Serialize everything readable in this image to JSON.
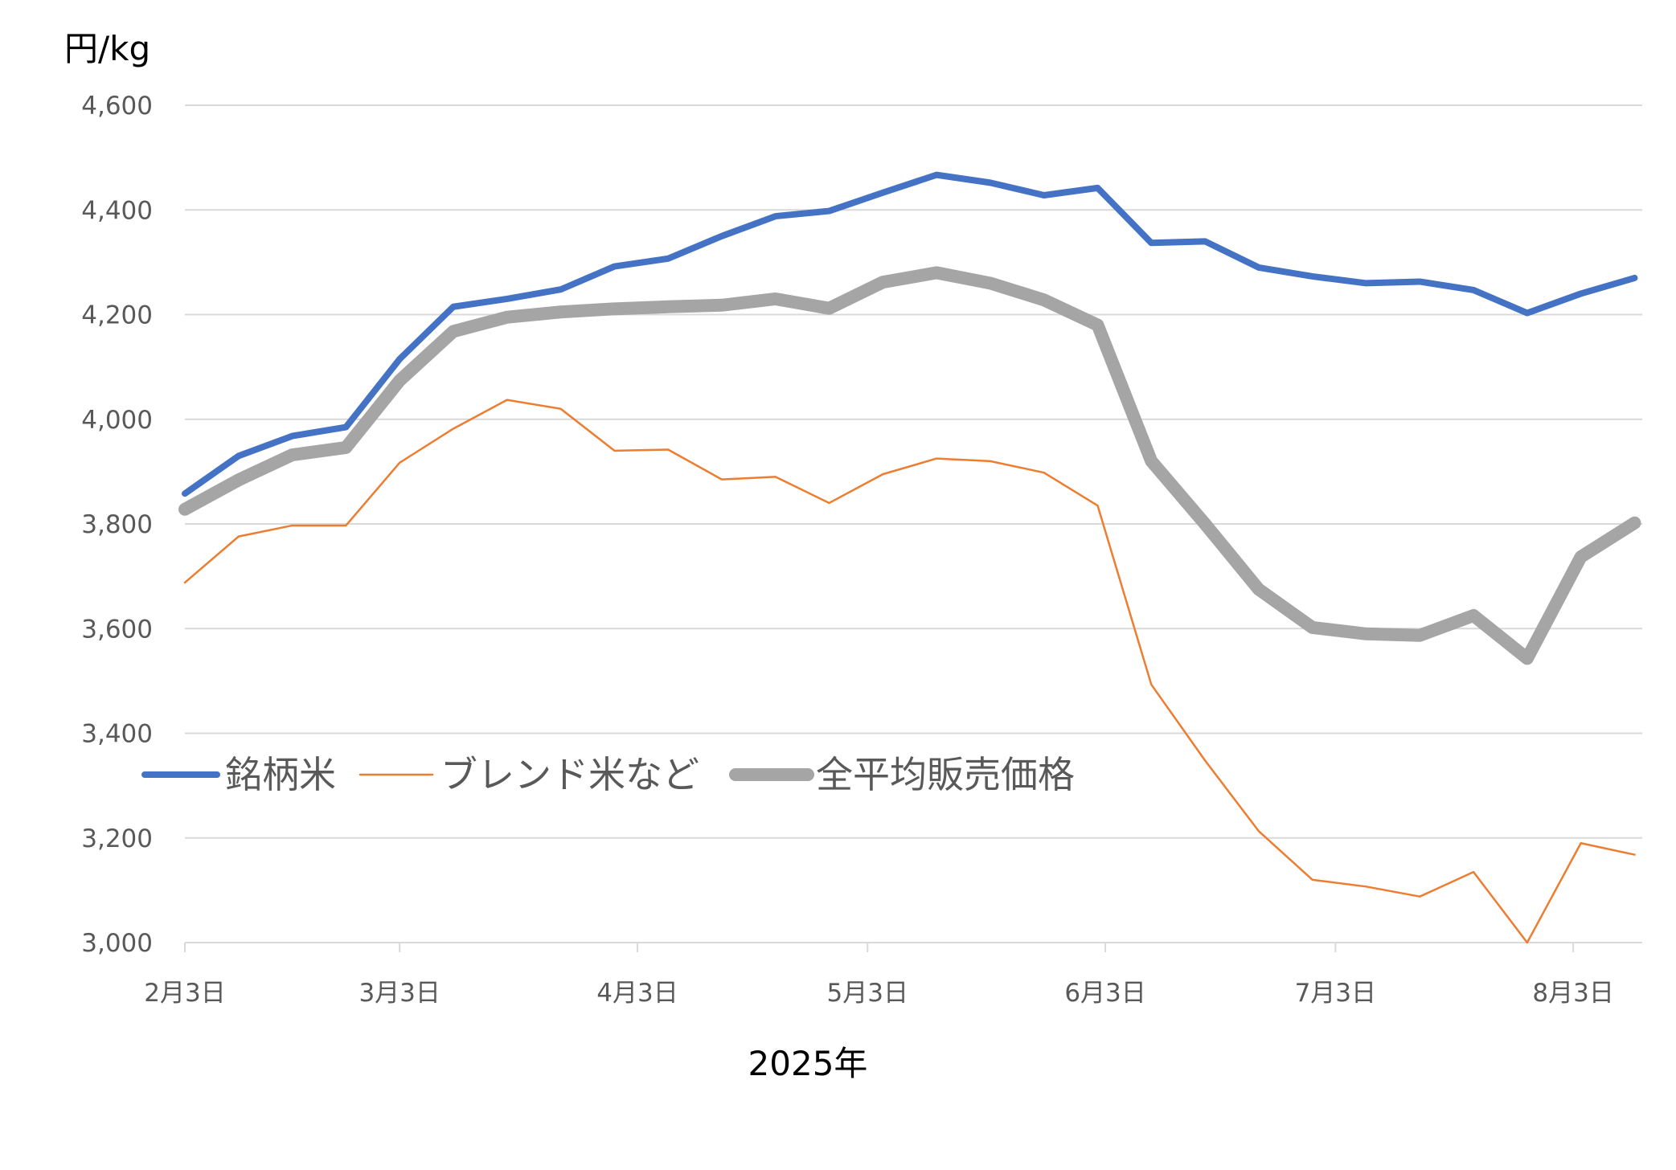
{
  "chart_data": {
    "type": "line",
    "ylabel": "円/kg",
    "xlabel": "2025年",
    "ylim": [
      3000,
      4600
    ],
    "y_ticks": [
      "3,000",
      "3,200",
      "3,400",
      "3,600",
      "3,800",
      "4,000",
      "4,200",
      "4,400",
      "4,600"
    ],
    "y_tick_values": [
      3000,
      3200,
      3400,
      3600,
      3800,
      4000,
      4200,
      4400,
      4600
    ],
    "x_ticks": [
      "2月3日",
      "3月3日",
      "4月3日",
      "5月3日",
      "6月3日",
      "7月3日",
      "8月3日"
    ],
    "x_tick_days": [
      0,
      28,
      59,
      89,
      120,
      150,
      181
    ],
    "x_range_days": [
      0,
      190
    ],
    "x_days": [
      0,
      7,
      14,
      21,
      28,
      35,
      42,
      49,
      56,
      63,
      70,
      77,
      84,
      91,
      98,
      105,
      112,
      119,
      126,
      133,
      140,
      147,
      154,
      161,
      168,
      175,
      182,
      189
    ],
    "grid": true,
    "legend_position": "left, inside plot near 3,400",
    "series": [
      {
        "name": "銘柄米",
        "color": "#4472C4",
        "values": [
          3858,
          3930,
          3968,
          3985,
          4115,
          4215,
          4230,
          4248,
          4292,
          4307,
          4350,
          4388,
          4398,
          4433,
          4467,
          4452,
          4428,
          4442,
          4337,
          4340,
          4290,
          4273,
          4260,
          4263,
          4247,
          4203,
          4240,
          4270
        ]
      },
      {
        "name": "ブレンド米など",
        "color": "#ED7D31",
        "values": [
          3688,
          3776,
          3797,
          3797,
          3917,
          3982,
          4037,
          4020,
          3940,
          3942,
          3885,
          3890,
          3840,
          3895,
          3925,
          3920,
          3898,
          3835,
          3493,
          3348,
          3213,
          3120,
          3107,
          3088,
          3135,
          3000,
          3190,
          3168
        ]
      },
      {
        "name": "全平均販売価格",
        "color": "#A5A5A5",
        "values": [
          3828,
          3884,
          3932,
          3946,
          4074,
          4168,
          4195,
          4205,
          4211,
          4215,
          4218,
          4230,
          4212,
          4262,
          4280,
          4260,
          4228,
          4180,
          3920,
          3800,
          3675,
          3602,
          3590,
          3587,
          3625,
          3543,
          3737,
          3802
        ]
      }
    ]
  }
}
